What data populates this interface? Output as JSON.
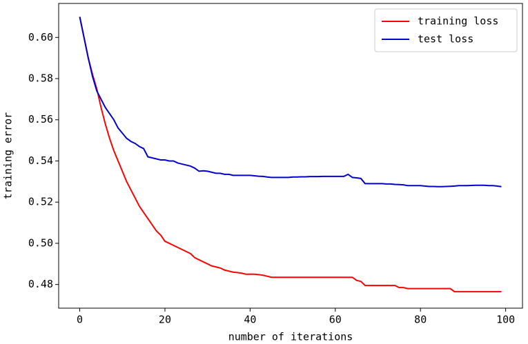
{
  "chart_data": {
    "type": "line",
    "xlabel": "number of iterations",
    "ylabel": "training error",
    "x": [
      0,
      1,
      2,
      3,
      4,
      5,
      6,
      7,
      8,
      9,
      10,
      11,
      12,
      13,
      14,
      15,
      16,
      17,
      18,
      19,
      20,
      21,
      22,
      23,
      24,
      25,
      26,
      27,
      28,
      29,
      30,
      31,
      32,
      33,
      34,
      35,
      36,
      37,
      38,
      39,
      40,
      41,
      42,
      43,
      44,
      45,
      46,
      47,
      48,
      49,
      50,
      51,
      52,
      53,
      54,
      55,
      56,
      57,
      58,
      59,
      60,
      61,
      62,
      63,
      64,
      65,
      66,
      67,
      68,
      69,
      70,
      71,
      72,
      73,
      74,
      75,
      76,
      77,
      78,
      79,
      80,
      81,
      82,
      83,
      84,
      85,
      86,
      87,
      88,
      89,
      90,
      91,
      92,
      93,
      94,
      95,
      96,
      97,
      98,
      99
    ],
    "series": [
      {
        "name": "training loss",
        "color": "#ff0000",
        "values": [
          0.61,
          0.6,
          0.59,
          0.582,
          0.575,
          0.566,
          0.558,
          0.551,
          0.545,
          0.54,
          0.535,
          0.53,
          0.526,
          0.522,
          0.518,
          0.515,
          0.512,
          0.509,
          0.506,
          0.504,
          0.501,
          0.5,
          0.499,
          0.498,
          0.497,
          0.496,
          0.495,
          0.493,
          0.492,
          0.491,
          0.49,
          0.489,
          0.4885,
          0.488,
          0.487,
          0.4865,
          0.486,
          0.4858,
          0.4855,
          0.485,
          0.485,
          0.485,
          0.4848,
          0.4845,
          0.484,
          0.4835,
          0.4835,
          0.4835,
          0.4835,
          0.4835,
          0.4835,
          0.4835,
          0.4835,
          0.4835,
          0.4835,
          0.4835,
          0.4835,
          0.4835,
          0.4835,
          0.4835,
          0.4835,
          0.4835,
          0.4835,
          0.4835,
          0.4835,
          0.482,
          0.4815,
          0.4795,
          0.4795,
          0.4795,
          0.4795,
          0.4795,
          0.4795,
          0.4795,
          0.4795,
          0.4785,
          0.4785,
          0.478,
          0.478,
          0.478,
          0.478,
          0.478,
          0.478,
          0.478,
          0.478,
          0.478,
          0.478,
          0.478,
          0.4765,
          0.4765,
          0.4765,
          0.4765,
          0.4765,
          0.4765,
          0.4765,
          0.4765,
          0.4765,
          0.4765,
          0.4765,
          0.4765
        ]
      },
      {
        "name": "test loss",
        "color": "#0000cc",
        "values": [
          0.61,
          0.6,
          0.59,
          0.581,
          0.574,
          0.57,
          0.566,
          0.563,
          0.56,
          0.556,
          0.5535,
          0.551,
          0.5495,
          0.5485,
          0.547,
          0.546,
          0.542,
          0.5415,
          0.541,
          0.5405,
          0.5405,
          0.54,
          0.54,
          0.539,
          0.5385,
          0.538,
          0.5375,
          0.5365,
          0.535,
          0.5352,
          0.535,
          0.5345,
          0.534,
          0.534,
          0.5335,
          0.5335,
          0.533,
          0.533,
          0.533,
          0.533,
          0.533,
          0.5328,
          0.5326,
          0.5325,
          0.5322,
          0.532,
          0.532,
          0.532,
          0.532,
          0.532,
          0.5322,
          0.5322,
          0.5323,
          0.5323,
          0.5324,
          0.5324,
          0.5324,
          0.5325,
          0.5325,
          0.5325,
          0.5325,
          0.5325,
          0.5325,
          0.5335,
          0.532,
          0.5318,
          0.5315,
          0.529,
          0.529,
          0.529,
          0.529,
          0.529,
          0.5288,
          0.5288,
          0.5286,
          0.5285,
          0.5284,
          0.528,
          0.528,
          0.528,
          0.528,
          0.5278,
          0.5276,
          0.5276,
          0.5275,
          0.5275,
          0.5276,
          0.5277,
          0.5278,
          0.528,
          0.528,
          0.528,
          0.5281,
          0.5282,
          0.5282,
          0.5282,
          0.528,
          0.528,
          0.5278,
          0.5275
        ]
      }
    ],
    "xlim": [
      -4.95,
      103.95
    ],
    "ylim": [
      0.4685,
      0.6165
    ],
    "xticks": [
      0,
      20,
      40,
      60,
      80,
      100
    ],
    "yticks": [
      0.48,
      {
        "value": 0.5,
        "label": "0.50"
      },
      0.52,
      0.54,
      0.56,
      0.58,
      {
        "value": 0.6,
        "label": "0.60"
      }
    ],
    "legend": "upper right"
  }
}
